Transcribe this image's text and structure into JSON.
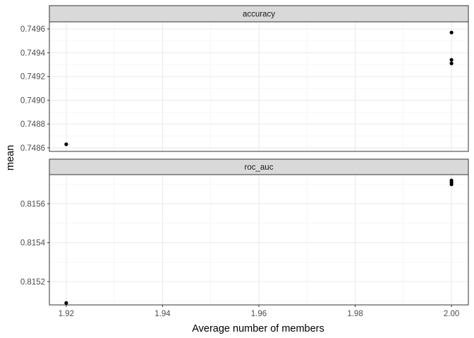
{
  "chart_data": {
    "type": "scatter",
    "xlabel": "Average number of members",
    "ylabel": "mean",
    "xlim": [
      1.9165,
      2.0035
    ],
    "x_ticks": [
      "1.92",
      "1.94",
      "1.96",
      "1.98",
      "2.00"
    ],
    "grid": true,
    "facets": [
      {
        "label": "accuracy",
        "ylim": [
          1.9165,
          2.0035
        ],
        "y_range": [
          0.74857,
          0.74966
        ],
        "y_ticks": [
          "0.7486",
          "0.7488",
          "0.7490",
          "0.7492",
          "0.7494",
          "0.7496"
        ],
        "points": [
          {
            "x": 1.92,
            "y": 0.74863
          },
          {
            "x": 2.0,
            "y": 0.74931
          },
          {
            "x": 2.0,
            "y": 0.74934
          },
          {
            "x": 2.0,
            "y": 0.74957
          }
        ]
      },
      {
        "label": "roc_auc",
        "y_range": [
          0.81508,
          0.81575
        ],
        "y_ticks": [
          "0.8152",
          "0.8154",
          "0.8156"
        ],
        "points": [
          {
            "x": 1.92,
            "y": 0.81509
          },
          {
            "x": 2.0,
            "y": 0.8157
          },
          {
            "x": 2.0,
            "y": 0.81571
          },
          {
            "x": 2.0,
            "y": 0.81572
          }
        ]
      }
    ]
  }
}
